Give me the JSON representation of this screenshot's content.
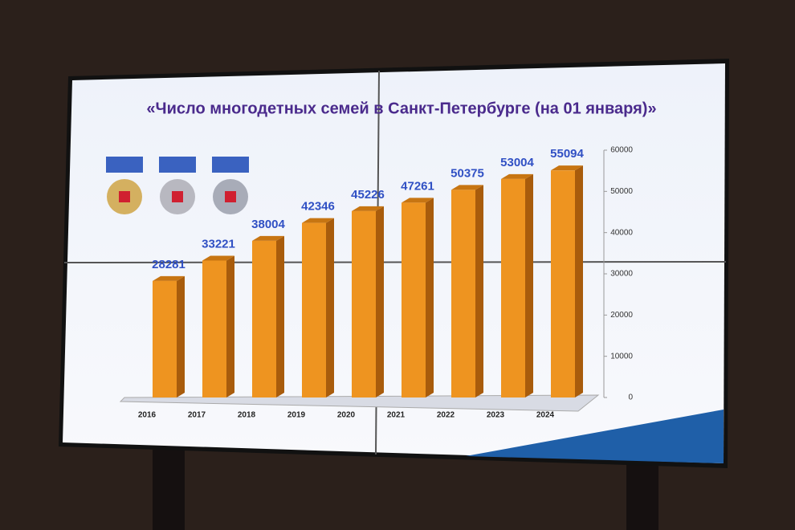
{
  "chart_data": {
    "type": "bar",
    "title": "«Число многодетных семей в Санкт-Петербурге (на 01 января)»",
    "categories": [
      "2016",
      "2017",
      "2018",
      "2019",
      "2020",
      "2021",
      "2022",
      "2023",
      "2024"
    ],
    "values": [
      28281,
      33221,
      38004,
      42346,
      45226,
      47261,
      50375,
      53004,
      55094
    ],
    "color": "#ee9420",
    "label_color": "#3050c4",
    "ylim": [
      0,
      60000
    ],
    "yticks": [
      0,
      10000,
      20000,
      30000,
      40000,
      50000,
      60000
    ],
    "y_axis_side": "right",
    "grid": false
  }
}
